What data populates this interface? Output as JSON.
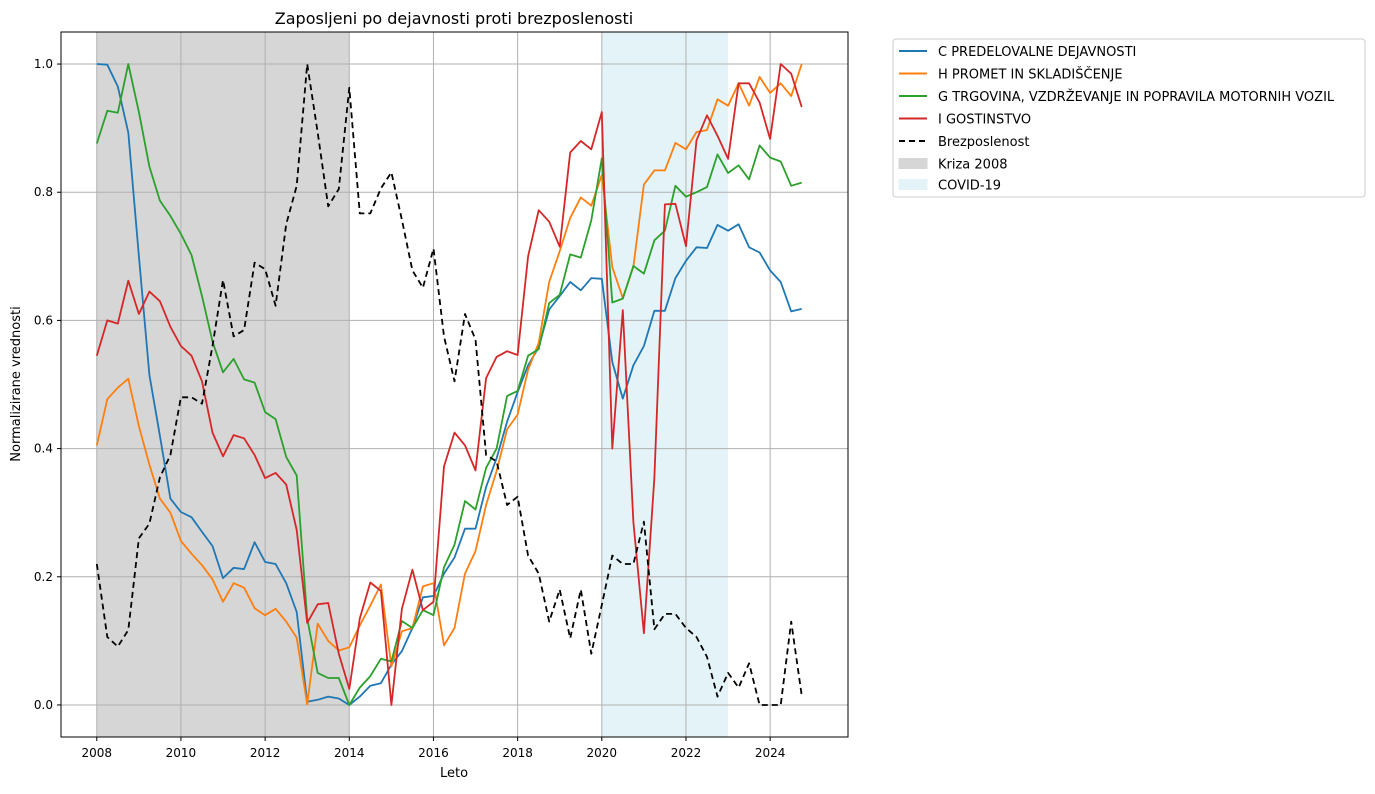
{
  "chart_data": {
    "type": "line",
    "title": "Zaposljeni po dejavnosti proti brezposlenosti",
    "xlabel": "Leto",
    "ylabel": "Normalizirane vrednosti",
    "xlim": [
      2007.15,
      2025.85
    ],
    "ylim": [
      -0.05,
      1.05
    ],
    "xticks": [
      2008,
      2010,
      2012,
      2014,
      2016,
      2018,
      2020,
      2022,
      2024
    ],
    "yticks": [
      0.0,
      0.2,
      0.4,
      0.6,
      0.8,
      1.0
    ],
    "ytick_labels": [
      "0.0",
      "0.2",
      "0.4",
      "0.6",
      "0.8",
      "1.0"
    ],
    "grid": true,
    "legend_position": "outside-top-right",
    "shaded_regions": [
      {
        "label": "Kriza 2008",
        "x0": 2008.0,
        "x1": 2014.0,
        "color": "#d6d6d6"
      },
      {
        "label": "COVID-19",
        "x0": 2020.0,
        "x1": 2023.0,
        "color": "#e3f3f7"
      }
    ],
    "x": [
      2008.0,
      2008.25,
      2008.5,
      2008.75,
      2009.0,
      2009.25,
      2009.5,
      2009.75,
      2010.0,
      2010.25,
      2010.5,
      2010.75,
      2011.0,
      2011.25,
      2011.5,
      2011.75,
      2012.0,
      2012.25,
      2012.5,
      2012.75,
      2013.0,
      2013.25,
      2013.5,
      2013.75,
      2014.0,
      2014.25,
      2014.5,
      2014.75,
      2015.0,
      2015.25,
      2015.5,
      2015.75,
      2016.0,
      2016.25,
      2016.5,
      2016.75,
      2017.0,
      2017.25,
      2017.5,
      2017.75,
      2018.0,
      2018.25,
      2018.5,
      2018.75,
      2019.0,
      2019.25,
      2019.5,
      2019.75,
      2020.0,
      2020.25,
      2020.5,
      2020.75,
      2021.0,
      2021.25,
      2021.5,
      2021.75,
      2022.0,
      2022.25,
      2022.5,
      2022.75,
      2023.0,
      2023.25,
      2023.5,
      2023.75,
      2024.0,
      2024.25,
      2024.5,
      2024.75
    ],
    "series": [
      {
        "name": "C PREDELOVALNE DEJAVNOSTI",
        "color": "#1f77b4",
        "dash": "",
        "values": [
          1.0,
          0.999,
          0.965,
          0.893,
          0.7,
          0.515,
          0.42,
          0.322,
          0.301,
          0.293,
          0.27,
          0.248,
          0.198,
          0.214,
          0.212,
          0.254,
          0.223,
          0.22,
          0.19,
          0.145,
          0.005,
          0.008,
          0.013,
          0.01,
          0.0,
          0.013,
          0.03,
          0.034,
          0.063,
          0.084,
          0.12,
          0.168,
          0.17,
          0.205,
          0.23,
          0.275,
          0.275,
          0.34,
          0.385,
          0.442,
          0.488,
          0.53,
          0.558,
          0.617,
          0.638,
          0.66,
          0.647,
          0.666,
          0.665,
          0.535,
          0.478,
          0.53,
          0.56,
          0.615,
          0.615,
          0.666,
          0.693,
          0.714,
          0.713,
          0.749,
          0.74,
          0.75,
          0.714,
          0.706,
          0.678,
          0.66,
          0.614,
          0.618
        ]
      },
      {
        "name": "H PROMET IN SKLADIŠČENJE",
        "color": "#ff7f0e",
        "dash": "",
        "values": [
          0.405,
          0.477,
          0.495,
          0.509,
          0.435,
          0.375,
          0.322,
          0.3,
          0.256,
          0.236,
          0.218,
          0.196,
          0.161,
          0.19,
          0.183,
          0.151,
          0.14,
          0.15,
          0.13,
          0.105,
          0.001,
          0.127,
          0.1,
          0.085,
          0.09,
          0.124,
          0.155,
          0.188,
          0.06,
          0.115,
          0.12,
          0.185,
          0.19,
          0.093,
          0.12,
          0.205,
          0.24,
          0.312,
          0.365,
          0.43,
          0.453,
          0.523,
          0.565,
          0.66,
          0.708,
          0.76,
          0.792,
          0.779,
          0.827,
          0.683,
          0.635,
          0.684,
          0.812,
          0.834,
          0.834,
          0.877,
          0.867,
          0.894,
          0.897,
          0.945,
          0.935,
          0.97,
          0.935,
          0.98,
          0.955,
          0.97,
          0.95,
          1.0
        ]
      },
      {
        "name": "G TRGOVINA, VZDRŽEVANJE IN POPRAVILA MOTORNIH VOZIL",
        "color": "#2ca02c",
        "dash": "",
        "values": [
          0.876,
          0.927,
          0.924,
          1.0,
          0.925,
          0.84,
          0.787,
          0.763,
          0.735,
          0.702,
          0.638,
          0.567,
          0.519,
          0.54,
          0.508,
          0.503,
          0.457,
          0.446,
          0.387,
          0.358,
          0.135,
          0.05,
          0.042,
          0.042,
          0.0,
          0.027,
          0.045,
          0.072,
          0.068,
          0.131,
          0.12,
          0.148,
          0.14,
          0.215,
          0.25,
          0.318,
          0.305,
          0.37,
          0.4,
          0.482,
          0.49,
          0.545,
          0.555,
          0.627,
          0.64,
          0.703,
          0.698,
          0.756,
          0.853,
          0.628,
          0.634,
          0.685,
          0.673,
          0.725,
          0.74,
          0.81,
          0.793,
          0.8,
          0.808,
          0.859,
          0.83,
          0.842,
          0.82,
          0.873,
          0.854,
          0.848,
          0.81,
          0.815
        ]
      },
      {
        "name": "I GOSTINSTVO",
        "color": "#d62728",
        "dash": "",
        "values": [
          0.545,
          0.6,
          0.595,
          0.662,
          0.61,
          0.645,
          0.63,
          0.59,
          0.56,
          0.545,
          0.505,
          0.425,
          0.388,
          0.421,
          0.416,
          0.39,
          0.354,
          0.362,
          0.344,
          0.273,
          0.128,
          0.157,
          0.159,
          0.08,
          0.025,
          0.135,
          0.191,
          0.178,
          0.0,
          0.15,
          0.211,
          0.148,
          0.161,
          0.372,
          0.425,
          0.405,
          0.366,
          0.51,
          0.543,
          0.552,
          0.546,
          0.7,
          0.772,
          0.754,
          0.715,
          0.862,
          0.88,
          0.867,
          0.925,
          0.4,
          0.616,
          0.285,
          0.112,
          0.355,
          0.781,
          0.782,
          0.716,
          0.881,
          0.92,
          0.888,
          0.852,
          0.97,
          0.97,
          0.94,
          0.883,
          1.0,
          0.985,
          0.933
        ]
      },
      {
        "name": "Brezposlenost",
        "color": "#000000",
        "dash": "6,4",
        "values": [
          0.22,
          0.106,
          0.091,
          0.117,
          0.26,
          0.283,
          0.355,
          0.39,
          0.48,
          0.48,
          0.47,
          0.56,
          0.663,
          0.575,
          0.585,
          0.69,
          0.68,
          0.623,
          0.75,
          0.81,
          1.0,
          0.893,
          0.778,
          0.805,
          0.963,
          0.767,
          0.767,
          0.806,
          0.831,
          0.757,
          0.678,
          0.651,
          0.712,
          0.575,
          0.505,
          0.61,
          0.57,
          0.39,
          0.38,
          0.312,
          0.325,
          0.233,
          0.205,
          0.13,
          0.18,
          0.104,
          0.18,
          0.08,
          0.156,
          0.233,
          0.22,
          0.22,
          0.286,
          0.118,
          0.142,
          0.142,
          0.12,
          0.106,
          0.075,
          0.013,
          0.05,
          0.027,
          0.065,
          0.0,
          0.0,
          0.0,
          0.13,
          0.015
        ]
      }
    ]
  }
}
